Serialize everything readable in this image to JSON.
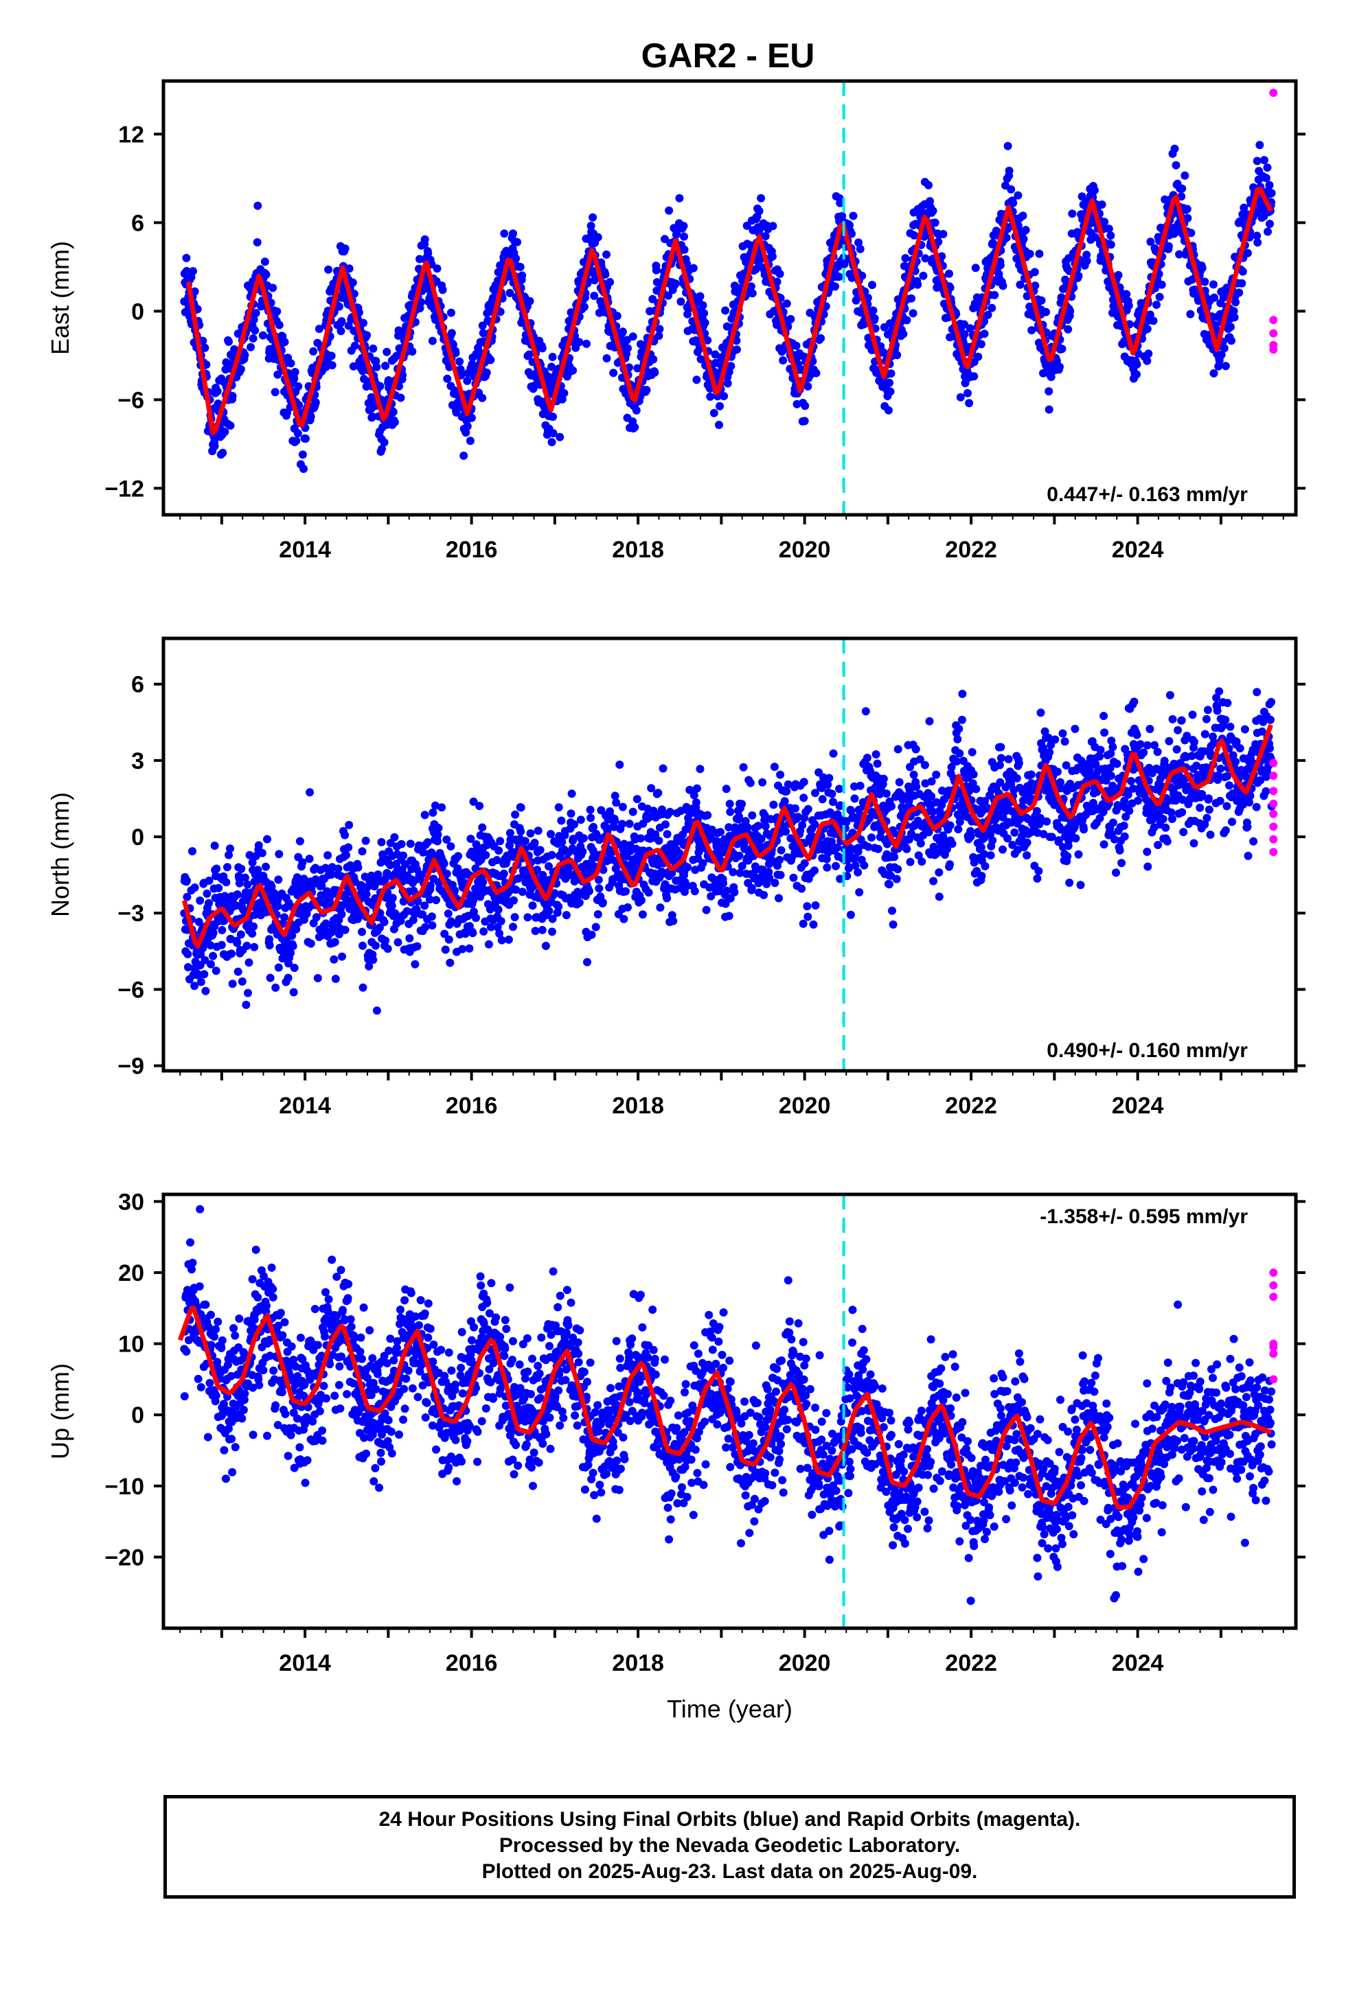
{
  "page": {
    "title": "GAR2 - EU"
  },
  "footer": {
    "lines": [
      "24 Hour Positions Using Final Orbits (blue) and Rapid Orbits (magenta).",
      "Processed by the Nevada Geodetic Laboratory.",
      "Plotted on 2025-Aug-23. Last data on 2025-Aug-09."
    ]
  },
  "colors": {
    "final_orbits": "#0000ff",
    "rapid_orbits": "#ff00ff",
    "model_fit": "#ff0000",
    "event_line": "#00e5e5",
    "frame": "#000000"
  },
  "chart_data": [
    {
      "type": "scatter",
      "panel": "east",
      "ylabel": "East (mm)",
      "xlabel": "",
      "xlim": [
        2012.3,
        2025.9
      ],
      "ylim": [
        -13.8,
        15.6
      ],
      "yticks": [
        -12,
        -6,
        0,
        6,
        12
      ],
      "xticks": [
        2014,
        2016,
        2018,
        2020,
        2022,
        2024
      ],
      "rate_label": "0.447+/- 0.163 mm/yr",
      "rate_label_position": "bottom-right",
      "event_line_x": 2020.47,
      "data_span": [
        2012.55,
        2025.61
      ],
      "model_fit": {
        "name": "model fit",
        "x": [
          2012.6,
          2012.9,
          2013.2,
          2013.45,
          2013.7,
          2013.95,
          2014.2,
          2014.45,
          2014.7,
          2014.95,
          2015.2,
          2015.45,
          2015.7,
          2015.95,
          2016.2,
          2016.45,
          2016.7,
          2016.95,
          2017.2,
          2017.45,
          2017.7,
          2017.95,
          2018.2,
          2018.45,
          2018.7,
          2018.95,
          2019.2,
          2019.45,
          2019.7,
          2019.95,
          2020.2,
          2020.45,
          2020.7,
          2020.95,
          2021.2,
          2021.45,
          2021.7,
          2021.95,
          2022.2,
          2022.45,
          2022.7,
          2022.95,
          2023.2,
          2023.45,
          2023.7,
          2023.95,
          2024.2,
          2024.45,
          2024.7,
          2024.95,
          2025.2,
          2025.45,
          2025.6
        ],
        "y": [
          2.0,
          -8.5,
          -3.0,
          2.5,
          -3.0,
          -8.0,
          -3.0,
          3.0,
          -2.5,
          -7.5,
          -2.5,
          3.5,
          -2.0,
          -7.0,
          -2.0,
          3.8,
          -1.5,
          -6.8,
          -1.5,
          4.3,
          -1.0,
          -6.3,
          -0.8,
          4.8,
          -0.5,
          -5.8,
          -0.3,
          5.2,
          0.0,
          -5.5,
          0.3,
          6.2,
          0.8,
          -4.5,
          1.0,
          6.6,
          1.3,
          -4.0,
          1.5,
          7.1,
          1.8,
          -3.6,
          2.0,
          7.6,
          2.3,
          -3.0,
          2.5,
          8.0,
          2.6,
          -2.6,
          3.0,
          8.5,
          6.8
        ]
      },
      "rapid_points": {
        "name": "Rapid Orbits",
        "x": [
          2025.63,
          2025.63,
          2025.63,
          2025.63,
          2025.63
        ],
        "y": [
          14.8,
          -0.6,
          -1.5,
          -2.3,
          -2.6
        ]
      },
      "final_scatter_sd": 1.3
    },
    {
      "type": "scatter",
      "panel": "north",
      "ylabel": "North (mm)",
      "xlabel": "",
      "xlim": [
        2012.3,
        2025.9
      ],
      "ylim": [
        -9.2,
        7.8
      ],
      "yticks": [
        -9,
        -6,
        -3,
        0,
        3,
        6
      ],
      "xticks": [
        2014,
        2016,
        2018,
        2020,
        2022,
        2024
      ],
      "rate_label": "0.490+/- 0.160 mm/yr",
      "rate_label_position": "bottom-right",
      "event_line_x": 2020.47,
      "data_span": [
        2012.55,
        2025.61
      ],
      "model_fit": {
        "name": "model fit",
        "x": [
          2012.55,
          2012.7,
          2012.85,
          2013.0,
          2013.15,
          2013.3,
          2013.45,
          2013.6,
          2013.75,
          2013.9,
          2014.05,
          2014.2,
          2014.35,
          2014.5,
          2014.65,
          2014.8,
          2014.95,
          2015.1,
          2015.25,
          2015.4,
          2015.55,
          2015.7,
          2015.85,
          2016.0,
          2016.15,
          2016.3,
          2016.45,
          2016.6,
          2016.75,
          2016.9,
          2017.05,
          2017.2,
          2017.35,
          2017.5,
          2017.65,
          2017.8,
          2017.95,
          2018.1,
          2018.25,
          2018.4,
          2018.55,
          2018.7,
          2018.85,
          2019.0,
          2019.15,
          2019.3,
          2019.45,
          2019.6,
          2019.75,
          2019.9,
          2020.05,
          2020.2,
          2020.35,
          2020.5,
          2020.65,
          2020.8,
          2020.95,
          2021.1,
          2021.25,
          2021.4,
          2021.55,
          2021.7,
          2021.85,
          2022.0,
          2022.15,
          2022.3,
          2022.45,
          2022.6,
          2022.75,
          2022.9,
          2023.05,
          2023.2,
          2023.35,
          2023.5,
          2023.65,
          2023.8,
          2023.95,
          2024.1,
          2024.25,
          2024.4,
          2024.55,
          2024.7,
          2024.85,
          2025.0,
          2025.15,
          2025.3,
          2025.45,
          2025.6
        ],
        "y": [
          -2.5,
          -4.4,
          -3.2,
          -2.8,
          -3.5,
          -3.2,
          -1.8,
          -3.0,
          -3.9,
          -2.6,
          -2.2,
          -3.0,
          -2.8,
          -1.5,
          -2.6,
          -3.4,
          -2.0,
          -1.7,
          -2.5,
          -2.2,
          -0.9,
          -2.0,
          -2.8,
          -1.6,
          -1.3,
          -2.2,
          -1.9,
          -0.4,
          -1.6,
          -2.5,
          -1.1,
          -0.9,
          -1.8,
          -1.5,
          0.2,
          -1.1,
          -2.0,
          -0.7,
          -0.5,
          -1.3,
          -0.9,
          0.7,
          -0.5,
          -1.4,
          -0.1,
          0.1,
          -0.8,
          -0.4,
          1.2,
          0.0,
          -0.9,
          0.5,
          0.6,
          -0.3,
          0.1,
          1.7,
          0.5,
          -0.4,
          1.0,
          1.2,
          0.3,
          0.7,
          2.4,
          1.0,
          0.2,
          1.5,
          1.7,
          0.9,
          1.2,
          2.9,
          1.5,
          0.7,
          2.0,
          2.2,
          1.4,
          1.7,
          3.4,
          2.0,
          1.2,
          2.5,
          2.7,
          1.9,
          2.2,
          3.9,
          2.4,
          1.7,
          3.0,
          4.4
        ]
      },
      "rapid_points": {
        "name": "Rapid Orbits",
        "x": [
          2025.63,
          2025.63,
          2025.63,
          2025.63,
          2025.63,
          2025.63,
          2025.63,
          2025.63
        ],
        "y": [
          2.4,
          1.8,
          1.3,
          0.9,
          0.4,
          -0.1,
          -0.6,
          2.9
        ]
      },
      "final_scatter_sd": 1.1
    },
    {
      "type": "scatter",
      "panel": "up",
      "ylabel": "Up (mm)",
      "xlabel": "Time (year)",
      "xlim": [
        2012.3,
        2025.9
      ],
      "ylim": [
        -30,
        31
      ],
      "yticks": [
        -20,
        -10,
        0,
        10,
        20,
        30
      ],
      "xticks": [
        2014,
        2016,
        2018,
        2020,
        2022,
        2024
      ],
      "rate_label": "-1.358+/- 0.595 mm/yr",
      "rate_label_position": "top-right",
      "event_line_x": 2020.47,
      "data_span": [
        2012.55,
        2025.61
      ],
      "model_fit": {
        "name": "model fit",
        "x": [
          2012.5,
          2012.65,
          2012.8,
          2012.95,
          2013.1,
          2013.25,
          2013.4,
          2013.55,
          2013.7,
          2013.85,
          2014.0,
          2014.15,
          2014.3,
          2014.45,
          2014.6,
          2014.75,
          2014.9,
          2015.05,
          2015.2,
          2015.35,
          2015.5,
          2015.65,
          2015.8,
          2015.95,
          2016.1,
          2016.25,
          2016.4,
          2016.55,
          2016.7,
          2016.85,
          2017.0,
          2017.15,
          2017.3,
          2017.45,
          2017.6,
          2017.75,
          2017.9,
          2018.05,
          2018.2,
          2018.35,
          2018.5,
          2018.65,
          2018.8,
          2018.95,
          2019.1,
          2019.25,
          2019.4,
          2019.55,
          2019.7,
          2019.85,
          2020.0,
          2020.15,
          2020.3,
          2020.45,
          2020.6,
          2020.75,
          2020.9,
          2021.05,
          2021.2,
          2021.35,
          2021.5,
          2021.65,
          2021.8,
          2021.95,
          2022.1,
          2022.25,
          2022.4,
          2022.55,
          2022.7,
          2022.85,
          2023.0,
          2023.15,
          2023.3,
          2023.45,
          2023.6,
          2023.75,
          2023.9,
          2024.05,
          2024.2,
          2024.35,
          2024.5,
          2024.65,
          2024.8,
          2024.95,
          2025.1,
          2025.25,
          2025.4,
          2025.6
        ],
        "y": [
          10.5,
          15.5,
          10.0,
          4.0,
          3.0,
          5.0,
          11.0,
          14.0,
          8.0,
          2.0,
          1.5,
          4.0,
          10.0,
          12.8,
          7.0,
          1.0,
          0.5,
          3.0,
          9.0,
          11.8,
          6.0,
          -0.5,
          -1.0,
          2.0,
          8.0,
          10.8,
          5.0,
          -2.0,
          -2.5,
          0.5,
          6.5,
          9.0,
          3.5,
          -3.5,
          -4.0,
          -1.0,
          5.0,
          7.5,
          2.0,
          -5.0,
          -5.5,
          -2.5,
          3.5,
          6.0,
          0.5,
          -6.5,
          -7.0,
          -4.0,
          2.0,
          4.5,
          -1.0,
          -8.0,
          -8.5,
          -5.5,
          0.5,
          3.0,
          -2.5,
          -9.5,
          -10.0,
          -7.0,
          -1.0,
          1.5,
          -4.0,
          -11.0,
          -11.5,
          -8.5,
          -2.5,
          0.0,
          -5.5,
          -12.0,
          -12.5,
          -9.5,
          -3.5,
          -1.0,
          -6.5,
          -13.0,
          -13.0,
          -10.0,
          -4.0,
          -2.5,
          -1.0,
          -1.5,
          -2.5,
          -2.0,
          -1.5,
          -1.0,
          -1.5,
          -2.5
        ]
      },
      "rapid_points": {
        "name": "Rapid Orbits",
        "x": [
          2025.63,
          2025.63,
          2025.63,
          2025.63,
          2025.63,
          2025.63,
          2025.63
        ],
        "y": [
          20.0,
          18.2,
          16.6,
          10.0,
          8.6,
          5.0,
          9.5
        ]
      },
      "final_scatter_sd": 4.6
    }
  ]
}
